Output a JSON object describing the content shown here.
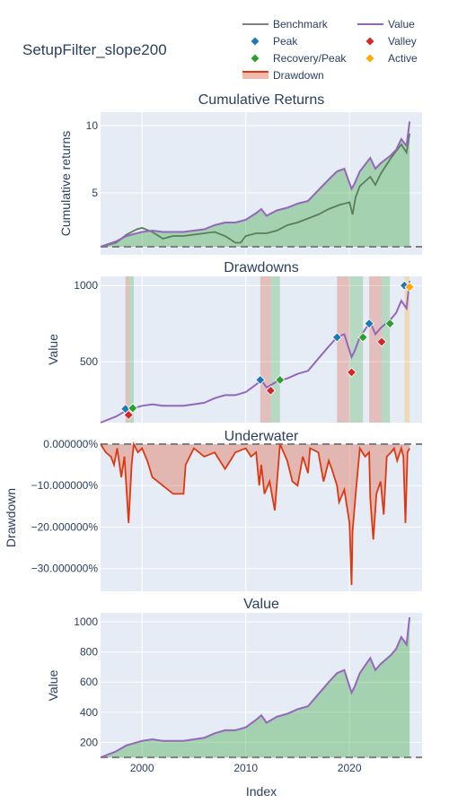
{
  "title": "SetupFilter_slope200",
  "legend": [
    {
      "key": "benchmark",
      "label": "Benchmark",
      "kind": "line",
      "color": "#7f7f7f"
    },
    {
      "key": "value",
      "label": "Value",
      "kind": "line",
      "color": "#9467bd"
    },
    {
      "key": "peak",
      "label": "Peak",
      "kind": "diamond",
      "color": "#1f77b4"
    },
    {
      "key": "valley",
      "label": "Valley",
      "kind": "diamond",
      "color": "#d62728"
    },
    {
      "key": "recovery",
      "label": "Recovery/Peak",
      "kind": "diamond",
      "color": "#2ca02c"
    },
    {
      "key": "active",
      "label": "Active",
      "kind": "diamond",
      "color": "#ffaa00"
    },
    {
      "key": "drawdown",
      "label": "Drawdown",
      "kind": "band",
      "color": "#dc3912"
    }
  ],
  "colors": {
    "value": "#9467bd",
    "benchmark": "#7f7f7f",
    "benchmark_dark": "#5a7e5a",
    "green_fill": "rgba(44,160,44,0.35)",
    "red_band": "rgba(220,57,18,0.25)",
    "green_band": "rgba(44,160,44,0.25)",
    "orange_band": "rgba(255,170,0,0.25)",
    "underwater": "#dc3912",
    "peak": "#1f77b4",
    "valley": "#d62728",
    "recovery": "#2ca02c",
    "active": "#ffaa00"
  },
  "xaxis": {
    "label": "Index",
    "range": [
      1996,
      2027
    ],
    "ticks": [
      2000,
      2010,
      2020
    ],
    "tick_labels": [
      "2000",
      "2010",
      "2020"
    ]
  },
  "chart_data": [
    {
      "type": "line",
      "subtitle": "Cumulative Returns",
      "ylabel": "Cumulative returns",
      "ylim": [
        0.4,
        11.0
      ],
      "yticks": [
        5,
        10
      ],
      "ytick_labels": [
        "5",
        "10"
      ],
      "baseline": 1,
      "series": [
        {
          "name": "Value",
          "x": [
            1996,
            1997.5,
            1998.5,
            1999,
            2000,
            2001,
            2002,
            2003,
            2004,
            2005,
            2006,
            2007,
            2008,
            2009,
            2010,
            2011,
            2011.5,
            2012,
            2013,
            2014,
            2015,
            2016,
            2017,
            2018,
            2018.8,
            2019.5,
            2020.2,
            2020.5,
            2021,
            2022,
            2022.5,
            2023,
            2024,
            2024.5,
            2025,
            2025.5,
            2025.8
          ],
          "y": [
            1.0,
            1.4,
            1.8,
            1.9,
            2.1,
            2.2,
            2.1,
            2.1,
            2.1,
            2.2,
            2.3,
            2.6,
            2.8,
            2.8,
            3.0,
            3.5,
            3.8,
            3.3,
            3.7,
            3.9,
            4.2,
            4.4,
            5.2,
            6.0,
            6.6,
            6.8,
            5.3,
            5.7,
            6.6,
            7.6,
            6.8,
            7.2,
            7.8,
            8.2,
            9.0,
            8.5,
            10.3
          ]
        },
        {
          "name": "Benchmark",
          "x": [
            1996,
            1997.5,
            1998.5,
            1999.5,
            2000,
            2001,
            2002,
            2003,
            2004,
            2005,
            2006,
            2007,
            2008,
            2009,
            2009.5,
            2010,
            2011,
            2012,
            2013,
            2014,
            2015,
            2016,
            2017,
            2018,
            2019,
            2020,
            2020.3,
            2020.6,
            2021,
            2022,
            2022.5,
            2023,
            2024,
            2025,
            2025.5,
            2025.8
          ],
          "y": [
            1.0,
            1.3,
            1.9,
            2.3,
            2.4,
            2.1,
            1.6,
            1.8,
            1.8,
            1.9,
            2.0,
            2.1,
            1.8,
            1.3,
            1.3,
            1.8,
            2.0,
            2.0,
            2.2,
            2.6,
            2.8,
            3.1,
            3.4,
            3.8,
            4.1,
            4.3,
            3.4,
            4.7,
            5.5,
            6.2,
            5.6,
            6.4,
            7.6,
            8.6,
            8.0,
            9.4
          ]
        }
      ]
    },
    {
      "type": "line",
      "subtitle": "Drawdowns",
      "ylabel": "Value",
      "ylim": [
        100,
        1060
      ],
      "yticks": [
        500,
        1000
      ],
      "ytick_labels": [
        "500",
        "1000"
      ],
      "series": [
        {
          "name": "Value",
          "x": [
            1996,
            1997.5,
            1998.5,
            1999,
            2000,
            2001,
            2002,
            2003,
            2004,
            2005,
            2006,
            2007,
            2008,
            2009,
            2010,
            2011,
            2011.5,
            2012,
            2013,
            2014,
            2015,
            2016,
            2017,
            2018,
            2018.8,
            2019.5,
            2020.2,
            2020.5,
            2021,
            2022,
            2022.5,
            2023,
            2024,
            2024.5,
            2025,
            2025.5,
            2025.8
          ],
          "y": [
            100,
            140,
            180,
            190,
            210,
            220,
            210,
            210,
            210,
            220,
            230,
            260,
            280,
            280,
            300,
            350,
            380,
            330,
            370,
            390,
            420,
            440,
            520,
            600,
            660,
            680,
            530,
            570,
            660,
            760,
            680,
            720,
            780,
            820,
            900,
            850,
            1030
          ]
        }
      ],
      "bands": [
        {
          "start": 1998.4,
          "end": 1998.75,
          "color": "red"
        },
        {
          "start": 1998.75,
          "end": 1999.2,
          "color": "green"
        },
        {
          "start": 2011.4,
          "end": 2012.4,
          "color": "red"
        },
        {
          "start": 2012.4,
          "end": 2013.3,
          "color": "green"
        },
        {
          "start": 2018.8,
          "end": 2020.0,
          "color": "red"
        },
        {
          "start": 2020.0,
          "end": 2021.3,
          "color": "green"
        },
        {
          "start": 2021.9,
          "end": 2023.1,
          "color": "red"
        },
        {
          "start": 2023.1,
          "end": 2023.9,
          "color": "green"
        },
        {
          "start": 2025.3,
          "end": 2025.8,
          "color": "orange"
        }
      ],
      "markers": [
        {
          "kind": "peak",
          "x": 1998.4,
          "y": 190
        },
        {
          "kind": "valley",
          "x": 1998.7,
          "y": 150
        },
        {
          "kind": "recovery",
          "x": 1999.1,
          "y": 195
        },
        {
          "kind": "peak",
          "x": 2011.4,
          "y": 380
        },
        {
          "kind": "valley",
          "x": 2012.4,
          "y": 310
        },
        {
          "kind": "recovery",
          "x": 2013.3,
          "y": 380
        },
        {
          "kind": "peak",
          "x": 2018.8,
          "y": 660
        },
        {
          "kind": "valley",
          "x": 2020.2,
          "y": 430
        },
        {
          "kind": "recovery",
          "x": 2021.3,
          "y": 660
        },
        {
          "kind": "peak",
          "x": 2021.9,
          "y": 750
        },
        {
          "kind": "valley",
          "x": 2023.1,
          "y": 630
        },
        {
          "kind": "recovery",
          "x": 2023.9,
          "y": 750
        },
        {
          "kind": "peak",
          "x": 2025.3,
          "y": 1000
        },
        {
          "kind": "active",
          "x": 2025.8,
          "y": 990
        }
      ]
    },
    {
      "type": "area",
      "subtitle": "Underwater",
      "ylabel": "Drawdown",
      "ylim": [
        -0.355,
        0.0
      ],
      "yticks": [
        0,
        -0.1,
        -0.2,
        -0.3
      ],
      "ytick_labels": [
        "0.000000%",
        "−10.000000%",
        "−20.000000%",
        "−30.000000%"
      ],
      "series": [
        {
          "name": "Drawdown",
          "x": [
            1996,
            1996.5,
            1997,
            1997.3,
            1997.6,
            1998,
            1998.3,
            1998.7,
            1999,
            1999.2,
            1999.6,
            2000,
            2000.5,
            2001,
            2002,
            2003,
            2004,
            2004.2,
            2005,
            2006,
            2007,
            2008,
            2008.5,
            2009,
            2010,
            2010.5,
            2011,
            2011.3,
            2011.5,
            2011.8,
            2012.3,
            2012.8,
            2013.3,
            2014,
            2014.5,
            2015,
            2015.5,
            2016,
            2016.2,
            2017,
            2017.5,
            2018,
            2018.3,
            2018.8,
            2019,
            2019.5,
            2020,
            2020.2,
            2020.3,
            2020.6,
            2021,
            2021.5,
            2021.9,
            2022,
            2022.3,
            2022.6,
            2023,
            2023.3,
            2023.6,
            2024,
            2024.3,
            2024.6,
            2025,
            2025.2,
            2025.4,
            2025.6,
            2025.8
          ],
          "y": [
            0,
            -0.02,
            -0.03,
            -0.05,
            -0.01,
            -0.08,
            -0.03,
            -0.19,
            -0.05,
            0,
            -0.02,
            -0.01,
            -0.04,
            -0.08,
            -0.1,
            -0.12,
            -0.12,
            -0.05,
            -0.01,
            -0.03,
            -0.02,
            -0.06,
            -0.04,
            -0.02,
            -0.01,
            -0.03,
            -0.02,
            -0.1,
            -0.05,
            -0.12,
            -0.09,
            -0.16,
            0,
            -0.04,
            -0.09,
            -0.1,
            -0.03,
            -0.07,
            -0.01,
            -0.02,
            -0.09,
            -0.04,
            -0.06,
            -0.1,
            -0.14,
            -0.11,
            -0.19,
            -0.34,
            -0.21,
            -0.12,
            -0.01,
            -0.03,
            -0.02,
            -0.13,
            -0.23,
            -0.12,
            -0.09,
            -0.17,
            -0.03,
            -0.02,
            -0.01,
            -0.04,
            -0.01,
            -0.03,
            -0.19,
            -0.02,
            -0.01
          ]
        }
      ]
    },
    {
      "type": "area",
      "subtitle": "Value",
      "ylabel": "Value",
      "ylim": [
        95,
        1060
      ],
      "yticks": [
        200,
        400,
        600,
        800,
        1000
      ],
      "ytick_labels": [
        "200",
        "400",
        "600",
        "800",
        "1000"
      ],
      "baseline": 100,
      "series": [
        {
          "name": "Value",
          "x": [
            1996,
            1997.5,
            1998.5,
            1999,
            2000,
            2001,
            2002,
            2003,
            2004,
            2005,
            2006,
            2007,
            2008,
            2009,
            2010,
            2011,
            2011.5,
            2012,
            2013,
            2014,
            2015,
            2016,
            2017,
            2018,
            2018.8,
            2019.5,
            2020.2,
            2020.5,
            2021,
            2022,
            2022.5,
            2023,
            2024,
            2024.5,
            2025,
            2025.5,
            2025.8
          ],
          "y": [
            100,
            140,
            180,
            190,
            210,
            220,
            210,
            210,
            210,
            220,
            230,
            260,
            280,
            280,
            300,
            350,
            380,
            330,
            370,
            390,
            420,
            440,
            520,
            600,
            660,
            680,
            530,
            570,
            660,
            760,
            680,
            720,
            780,
            820,
            900,
            850,
            1030
          ]
        }
      ]
    }
  ]
}
